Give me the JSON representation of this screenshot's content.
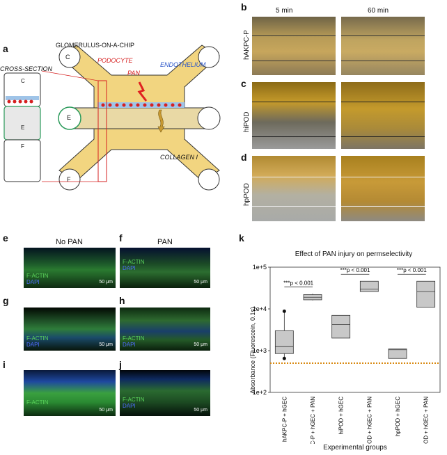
{
  "panels": {
    "a": "a",
    "b": "b",
    "c": "c",
    "d": "d",
    "e": "e",
    "f": "f",
    "g": "g",
    "h": "h",
    "i": "i",
    "j": "j",
    "k": "k"
  },
  "diagram": {
    "title": "GLOMERULUS-ON-A-CHIP",
    "cross_section": "CROSS-SECTION",
    "podocyte": "PODOCYTE",
    "pan": "PAN",
    "endothelium": "ENDOTHELIUM",
    "collagen": "COLLAGEN I",
    "channel_c": "C",
    "channel_e": "E",
    "channel_f": "F"
  },
  "micrographs": {
    "col_5min": "5 min",
    "col_60min": "60 min",
    "row_b": "hAKPC-P",
    "row_c": "hiPOD",
    "row_d": "hpPOD"
  },
  "fluorescence": {
    "col_no_pan": "No PAN",
    "col_pan": "PAN",
    "factin": "F-ACTIN",
    "dapi": "DAPI",
    "scale": "50 μm"
  },
  "chart_data": {
    "type": "box",
    "title": "Effect of PAN injury on permselectivity",
    "xlabel": "Experimental groups",
    "ylabel": "Absorbance (Fluorescein, 0.1s)",
    "yscale": "log",
    "ylim": [
      100,
      100000
    ],
    "yticks": [
      "1e+2",
      "1e+3",
      "1e+4",
      "1e+5"
    ],
    "categories": [
      "hAKPC-P + hGEC",
      "hAKPC-P + hGEC + PAN",
      "hiPOD + hGEC",
      "hiPOD + hGEC + PAN",
      "hpPOD + hGEC",
      "hpPOD + hGEC + PAN"
    ],
    "boxes": [
      {
        "min": 700,
        "q1": 850,
        "median": 1250,
        "q3": 3000,
        "max": 8800,
        "outliers": [
          650,
          8800
        ]
      },
      {
        "min": 16000,
        "q1": 16500,
        "median": 19000,
        "q3": 22000,
        "max": 23000,
        "outliers": []
      },
      {
        "min": 2000,
        "q1": 2000,
        "median": 4200,
        "q3": 7000,
        "max": 7000,
        "outliers": []
      },
      {
        "min": 26000,
        "q1": 26000,
        "median": 30000,
        "q3": 46000,
        "max": 46000,
        "outliers": []
      },
      {
        "min": 650,
        "q1": 650,
        "median": 1050,
        "q3": 1100,
        "max": 1100,
        "outliers": []
      },
      {
        "min": 11000,
        "q1": 11000,
        "median": 26000,
        "q3": 46000,
        "max": 46000,
        "outliers": []
      }
    ],
    "threshold": 500,
    "threshold_color": "#d98a12",
    "box_fill": "#c8c8c8",
    "significance": [
      {
        "pair": [
          0,
          1
        ],
        "stars": "***",
        "label": "p < 0.001"
      },
      {
        "pair": [
          2,
          3
        ],
        "stars": "***",
        "label": "p < 0.001"
      },
      {
        "pair": [
          4,
          5
        ],
        "stars": "***",
        "label": "p < 0.001"
      }
    ],
    "grid": false
  }
}
